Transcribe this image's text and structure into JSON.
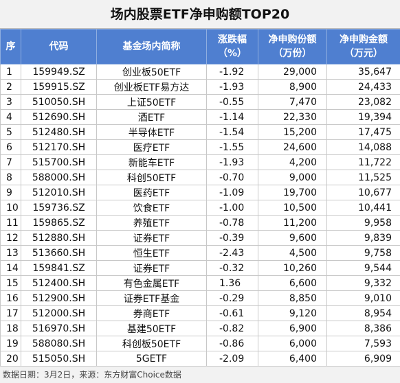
{
  "title": "场内股票ETF净申购额TOP20",
  "table": {
    "header": [
      [
        "序"
      ],
      [
        "代码"
      ],
      [
        "基金场内简称"
      ],
      [
        "涨跌幅",
        "（%）"
      ],
      [
        "净申购份额",
        "（万份）"
      ],
      [
        "净申购金额",
        "（万元）"
      ]
    ],
    "rows": [
      [
        "1",
        "159949.SZ",
        "创业板50ETF",
        "-1.92",
        "29,000",
        "35,647"
      ],
      [
        "2",
        "159915.SZ",
        "创业板ETF易方达",
        "-1.93",
        "8,900",
        "24,433"
      ],
      [
        "3",
        "510050.SH",
        "上证50ETF",
        "-0.55",
        "7,470",
        "23,082"
      ],
      [
        "4",
        "512690.SH",
        "酒ETF",
        "-1.14",
        "22,330",
        "19,394"
      ],
      [
        "5",
        "512480.SH",
        "半导体ETF",
        "-1.54",
        "15,200",
        "17,475"
      ],
      [
        "6",
        "512170.SH",
        "医疗ETF",
        "-1.55",
        "24,600",
        "14,088"
      ],
      [
        "7",
        "515700.SH",
        "新能车ETF",
        "-1.93",
        "4,200",
        "11,722"
      ],
      [
        "8",
        "588000.SH",
        "科创50ETF",
        "-0.70",
        "9,000",
        "11,525"
      ],
      [
        "9",
        "512010.SH",
        "医药ETF",
        "-1.09",
        "19,700",
        "10,677"
      ],
      [
        "10",
        "159736.SZ",
        "饮食ETF",
        "-1.00",
        "10,500",
        "10,441"
      ],
      [
        "11",
        "159865.SZ",
        "养殖ETF",
        "-0.78",
        "11,200",
        "9,958"
      ],
      [
        "12",
        "512880.SH",
        "证券ETF",
        "-0.39",
        "9,600",
        "9,839"
      ],
      [
        "13",
        "513660.SH",
        "恒生ETF",
        "-2.43",
        "4,500",
        "9,758"
      ],
      [
        "14",
        "159841.SZ",
        "证券ETF",
        "-0.32",
        "10,260",
        "9,544"
      ],
      [
        "15",
        "512400.SH",
        "有色金属ETF",
        "1.36",
        "6,600",
        "9,332"
      ],
      [
        "16",
        "512900.SH",
        "证券ETF基金",
        "-0.29",
        "8,850",
        "9,010"
      ],
      [
        "17",
        "512000.SH",
        "券商ETF",
        "-0.61",
        "9,120",
        "8,954"
      ],
      [
        "18",
        "516970.SH",
        "基建50ETF",
        "-0.82",
        "6,900",
        "8,386"
      ],
      [
        "19",
        "588080.SH",
        "科创板50ETF",
        "-0.86",
        "6,000",
        "7,593"
      ],
      [
        "20",
        "515050.SH",
        "5GETF",
        "-2.09",
        "6,400",
        "6,909"
      ]
    ]
  },
  "footer": "数据日期：3月2日，来源：东方财富Choice数据"
}
